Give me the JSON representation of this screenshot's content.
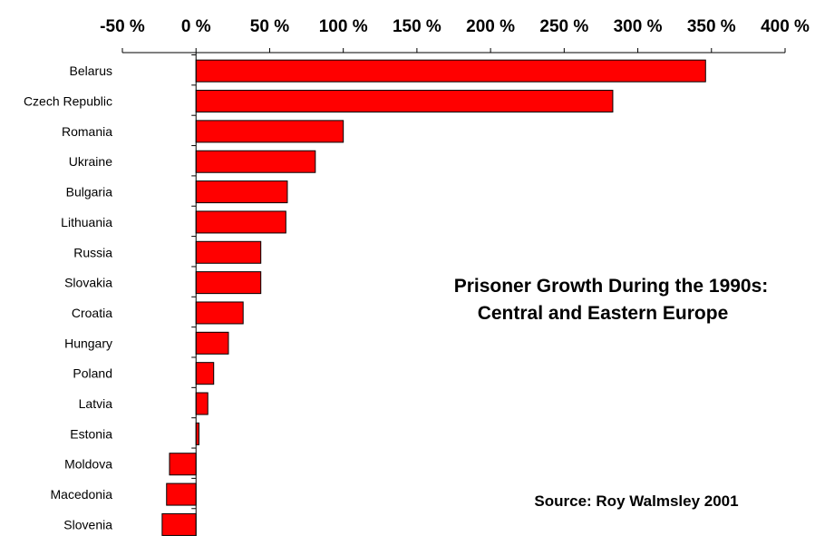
{
  "chart_data": {
    "type": "bar",
    "orientation": "horizontal",
    "title_lines": [
      "Prisoner Growth During the 1990s:",
      "Central and Eastern Europe"
    ],
    "source": "Source: Roy Walmsley 2001",
    "x_ticks": [
      "-50 %",
      "0 %",
      "50 %",
      "100 %",
      "150 %",
      "200 %",
      "250 %",
      "300 %",
      "350 %",
      "400 %"
    ],
    "xlim": [
      -50,
      400
    ],
    "x_axis_position": "top",
    "grid": false,
    "bar_color": "#ff0000",
    "categories": [
      "Belarus",
      "Czech Republic",
      "Romania",
      "Ukraine",
      "Bulgaria",
      "Lithuania",
      "Russia",
      "Slovakia",
      "Croatia",
      "Hungary",
      "Poland",
      "Latvia",
      "Estonia",
      "Moldova",
      "Macedonia",
      "Slovenia"
    ],
    "values": [
      346,
      283,
      100,
      81,
      62,
      61,
      44,
      44,
      32,
      22,
      12,
      8,
      2,
      -18,
      -20,
      -23
    ]
  }
}
